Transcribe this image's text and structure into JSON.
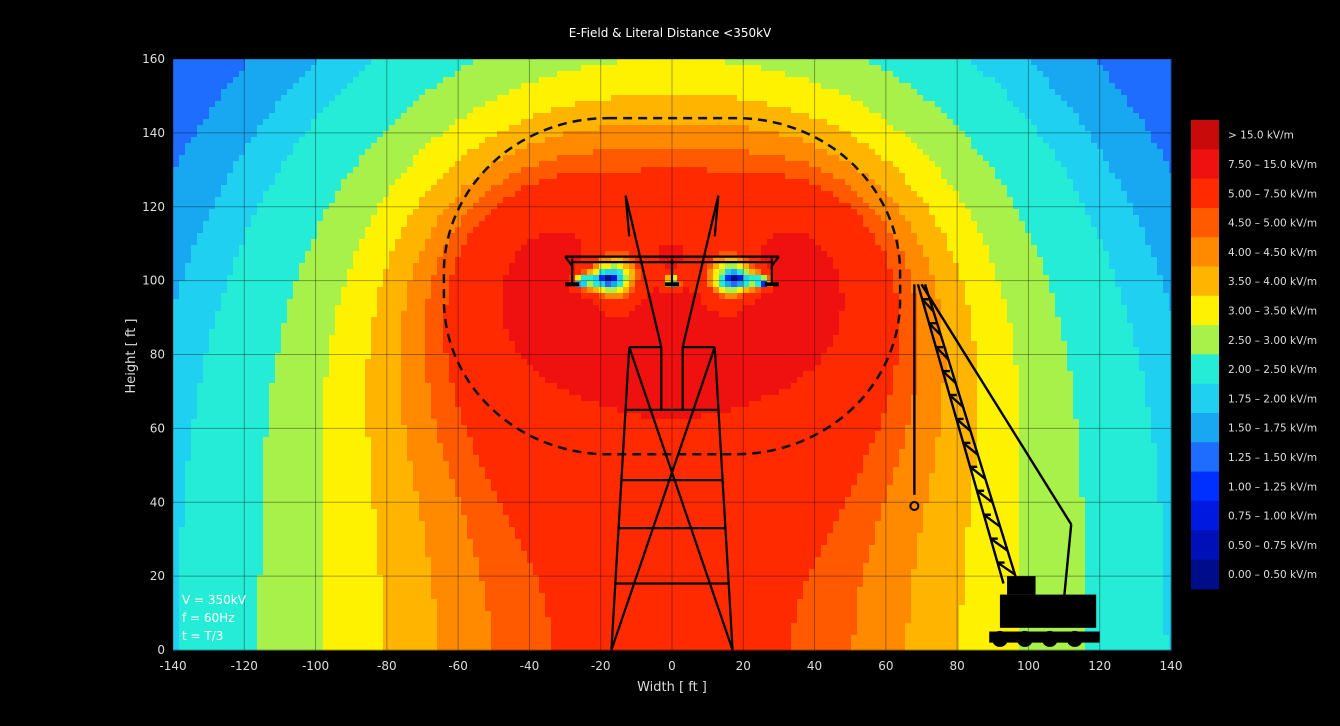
{
  "chart_data": {
    "type": "heatmap",
    "title": "E-Field & Literal Distance <350kV",
    "xlabel": "Width [ ft ]",
    "ylabel": "Height [ ft ]",
    "xlim": [
      -140,
      140
    ],
    "ylim": [
      0,
      160
    ],
    "xticks": [
      "-140",
      "-120",
      "-100",
      "-80",
      "-60",
      "-40",
      "-20",
      "0",
      "20",
      "40",
      "60",
      "80",
      "100",
      "120",
      "140"
    ],
    "yticks": [
      "0",
      "20",
      "40",
      "60",
      "80",
      "100",
      "120",
      "140",
      "160"
    ],
    "grid": true,
    "legend_position": "right",
    "conductors": [
      {
        "x": -28,
        "y": 99
      },
      {
        "x": 0,
        "y": 99
      },
      {
        "x": 28,
        "y": 99
      }
    ],
    "safety_boundary": {
      "type": "dashed-contour",
      "level_kv_per_m": 3.0,
      "x_range": [
        -64,
        64
      ],
      "y_range": [
        53,
        144
      ]
    },
    "field_bands": [
      {
        "label": "0.00 – 0.50 kV/m",
        "min": 0.0,
        "max": 0.5,
        "color": "#000d8a"
      },
      {
        "label": "0.50 – 0.75 kV/m",
        "min": 0.5,
        "max": 0.75,
        "color": "#0010b8"
      },
      {
        "label": "0.75 – 1.00 kV/m",
        "min": 0.75,
        "max": 1.0,
        "color": "#0019e0"
      },
      {
        "label": "1.00 – 1.25 kV/m",
        "min": 1.0,
        "max": 1.25,
        "color": "#0030ff"
      },
      {
        "label": "1.25 – 1.50 kV/m",
        "min": 1.25,
        "max": 1.5,
        "color": "#1e6dff"
      },
      {
        "label": "1.50 – 1.75 kV/m",
        "min": 1.5,
        "max": 1.75,
        "color": "#18a8f2"
      },
      {
        "label": "1.75 – 2.00 kV/m",
        "min": 1.75,
        "max": 2.0,
        "color": "#20d0f0"
      },
      {
        "label": "2.00 – 2.50 kV/m",
        "min": 2.0,
        "max": 2.5,
        "color": "#25ecd6"
      },
      {
        "label": "2.50 – 3.00 kV/m",
        "min": 2.5,
        "max": 3.0,
        "color": "#a8f04a"
      },
      {
        "label": "3.00 – 3.50 kV/m",
        "min": 3.0,
        "max": 3.5,
        "color": "#fff200"
      },
      {
        "label": "3.50 – 4.00 kV/m",
        "min": 3.5,
        "max": 4.0,
        "color": "#ffb400"
      },
      {
        "label": "4.00 – 4.50 kV/m",
        "min": 4.0,
        "max": 4.5,
        "color": "#ff8a00"
      },
      {
        "label": "4.50 – 5.00 kV/m",
        "min": 4.5,
        "max": 5.0,
        "color": "#ff5a00"
      },
      {
        "label": "5.00 – 7.50 kV/m",
        "min": 5.0,
        "max": 7.5,
        "color": "#ff2a00"
      },
      {
        "label": "7.50 – 15.0 kV/m",
        "min": 7.5,
        "max": 15.0,
        "color": "#ef1010"
      },
      {
        "label": "> 15.0 kV/m",
        "min": 15.0,
        "max": null,
        "color": "#c80a0a"
      }
    ],
    "annotations": [
      "V = 350kV",
      "f = 60Hz",
      "t = T/3"
    ],
    "objects": [
      {
        "name": "transmission-tower",
        "x": 0,
        "base_y": 0,
        "top_y": 125
      },
      {
        "name": "crane",
        "x": 100,
        "boom_tip": [
          69,
          99
        ]
      }
    ]
  }
}
